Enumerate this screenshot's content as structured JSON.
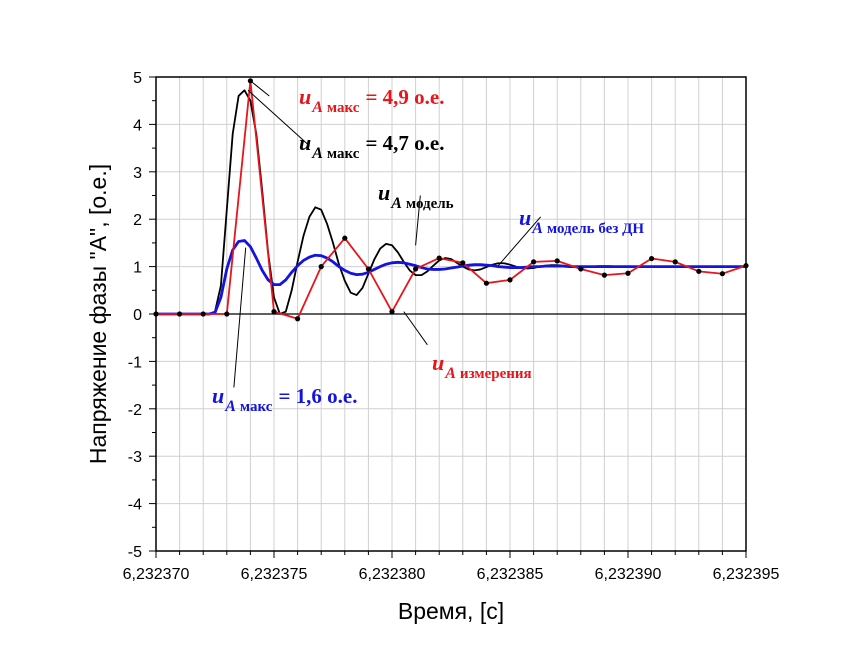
{
  "chart_data": {
    "type": "line",
    "xlabel": "Время, [с]",
    "ylabel": "Напряжение фазы \"А\", [о.е.]",
    "xlim": [
      6.23237,
      6.232395
    ],
    "ylim": [
      -5,
      5
    ],
    "x_ticks": [
      "6,232370",
      "6,232375",
      "6,232380",
      "6,232385",
      "6,232390",
      "6,232395"
    ],
    "y_ticks": [
      "-5",
      "-4",
      "-3",
      "-2",
      "-1",
      "0",
      "1",
      "2",
      "3",
      "4",
      "5"
    ],
    "grid": true,
    "colors": {
      "measured": "#e8151b",
      "model": "#000000",
      "model_no_dn": "#1414e0",
      "zero_line": "#000000",
      "grid": "#d0d0d0"
    },
    "series": [
      {
        "name": "u_A измерения",
        "color": "#e8151b",
        "markers": true,
        "x": [
          6.23237,
          6.232371,
          6.232372,
          6.232373,
          6.232374,
          6.232375,
          6.232376,
          6.232377,
          6.232378,
          6.232379,
          6.23238,
          6.232381,
          6.232382,
          6.232383,
          6.232384,
          6.232385,
          6.232386,
          6.232387,
          6.232388,
          6.232389,
          6.23239,
          6.232391,
          6.232392,
          6.232393,
          6.232394,
          6.232395
        ],
        "y": [
          0,
          0,
          0,
          0,
          4.92,
          0.05,
          -0.1,
          1.0,
          1.6,
          0.95,
          0.05,
          0.95,
          1.18,
          1.08,
          0.65,
          0.72,
          1.1,
          1.12,
          0.95,
          0.82,
          0.86,
          1.17,
          1.1,
          0.9,
          0.85,
          1.02
        ]
      },
      {
        "name": "u_A модель",
        "color": "#000000",
        "markers": false,
        "x": [
          6.23237,
          6.23237225,
          6.2323725,
          6.23237275,
          6.232373,
          6.23237325,
          6.2323735,
          6.23237375,
          6.232374,
          6.23237425,
          6.2323745,
          6.23237475,
          6.232375,
          6.23237525,
          6.2323755,
          6.23237575,
          6.232376,
          6.23237625,
          6.2323765,
          6.23237675,
          6.232377,
          6.23237725,
          6.2323775,
          6.23237775,
          6.232378,
          6.23237825,
          6.2323785,
          6.23237875,
          6.232379,
          6.23237925,
          6.2323795,
          6.23237975,
          6.23238,
          6.23238025,
          6.2323805,
          6.23238075,
          6.232381,
          6.23238125,
          6.2323815,
          6.23238175,
          6.232382,
          6.23238225,
          6.2323825,
          6.23238275,
          6.232383,
          6.23238325,
          6.2323835,
          6.23238375,
          6.232384,
          6.23238425,
          6.2323845,
          6.23238475,
          6.232385,
          6.23238525,
          6.2323855,
          6.23238575,
          6.232386,
          6.23238625,
          6.2323865,
          6.23238675,
          6.232387,
          6.23238725,
          6.2323875,
          6.23238775,
          6.232388,
          6.23238825,
          6.2323885,
          6.23238875,
          6.232389,
          6.23238925,
          6.2323895,
          6.23238975,
          6.23239,
          6.23239125,
          6.2323925,
          6.23239375,
          6.232395
        ],
        "y": [
          0,
          0,
          0.05,
          0.6,
          2.2,
          3.8,
          4.6,
          4.72,
          4.5,
          3.8,
          2.6,
          1.3,
          0.35,
          0.0,
          0.05,
          0.5,
          1.1,
          1.65,
          2.05,
          2.25,
          2.2,
          1.9,
          1.5,
          1.05,
          0.7,
          0.45,
          0.4,
          0.55,
          0.85,
          1.15,
          1.38,
          1.48,
          1.45,
          1.3,
          1.1,
          0.92,
          0.82,
          0.82,
          0.9,
          1.02,
          1.13,
          1.18,
          1.16,
          1.08,
          1.0,
          0.94,
          0.92,
          0.94,
          0.99,
          1.04,
          1.07,
          1.07,
          1.04,
          1.0,
          0.97,
          0.96,
          0.97,
          1.0,
          1.02,
          1.03,
          1.03,
          1.02,
          1.0,
          0.99,
          0.98,
          0.99,
          1.0,
          1.01,
          1.01,
          1.01,
          1.0,
          1.0,
          1.0,
          1.0,
          1.0,
          1.0,
          1.0
        ]
      },
      {
        "name": "u_A модель без ДН",
        "color": "#1414e0",
        "markers": false,
        "x": [
          6.23237,
          6.23237225,
          6.2323725,
          6.23237275,
          6.232373,
          6.23237325,
          6.2323735,
          6.23237375,
          6.232374,
          6.23237425,
          6.2323745,
          6.23237475,
          6.232375,
          6.23237525,
          6.2323755,
          6.23237575,
          6.232376,
          6.23237625,
          6.2323765,
          6.23237675,
          6.232377,
          6.23237725,
          6.2323775,
          6.23237775,
          6.232378,
          6.23237825,
          6.2323785,
          6.23237875,
          6.232379,
          6.23237925,
          6.2323795,
          6.23237975,
          6.23238,
          6.23238025,
          6.2323805,
          6.23238075,
          6.232381,
          6.23238125,
          6.2323815,
          6.23238175,
          6.232382,
          6.23238225,
          6.2323825,
          6.23238275,
          6.232383,
          6.23238325,
          6.2323835,
          6.23238375,
          6.232384,
          6.23238425,
          6.2323845,
          6.23238475,
          6.232385,
          6.23238525,
          6.2323855,
          6.23238575,
          6.232386,
          6.23238625,
          6.2323865,
          6.23238675,
          6.232387,
          6.23238725,
          6.2323875,
          6.23238775,
          6.232388,
          6.23238825,
          6.2323885,
          6.23238875,
          6.232389,
          6.23239025,
          6.2323915,
          6.23239275,
          6.232394,
          6.232395
        ],
        "y": [
          0,
          0,
          0.03,
          0.35,
          0.95,
          1.35,
          1.53,
          1.55,
          1.42,
          1.18,
          0.92,
          0.72,
          0.62,
          0.62,
          0.72,
          0.88,
          1.02,
          1.13,
          1.2,
          1.24,
          1.23,
          1.18,
          1.1,
          1.0,
          0.92,
          0.86,
          0.83,
          0.84,
          0.88,
          0.94,
          1.0,
          1.05,
          1.08,
          1.09,
          1.08,
          1.05,
          1.02,
          0.98,
          0.95,
          0.94,
          0.94,
          0.95,
          0.97,
          0.99,
          1.01,
          1.03,
          1.04,
          1.04,
          1.03,
          1.02,
          1.0,
          0.99,
          0.98,
          0.98,
          0.98,
          0.99,
          1.0,
          1.0,
          1.01,
          1.01,
          1.01,
          1.01,
          1.0,
          1.0,
          1.0,
          1.0,
          1.0,
          1.0,
          1.0,
          1.0,
          1.0,
          1.0,
          1.0,
          1.0
        ]
      }
    ],
    "annotations": [
      {
        "id": "red_peak",
        "color": "#e8151b",
        "u": "u",
        "a": "A",
        "sub": "макс",
        "value": "= 4,9 о.е."
      },
      {
        "id": "black_peak",
        "color": "#000000",
        "u": "u",
        "a": "A",
        "sub": "макс",
        "value": "= 4,7 о.е."
      },
      {
        "id": "black_model",
        "color": "#000000",
        "u": "u",
        "a": "A",
        "sub": "модель",
        "value": ""
      },
      {
        "id": "blue_model",
        "color": "#1414e0",
        "u": "u",
        "a": "A",
        "sub": "модель без ДН",
        "value": ""
      },
      {
        "id": "red_meas",
        "color": "#e8151b",
        "u": "u",
        "a": "A",
        "sub": "измерения",
        "value": ""
      },
      {
        "id": "blue_peak",
        "color": "#1414e0",
        "u": "u",
        "a": "A",
        "sub": "макс",
        "value": "= 1,6 о.е."
      }
    ]
  }
}
